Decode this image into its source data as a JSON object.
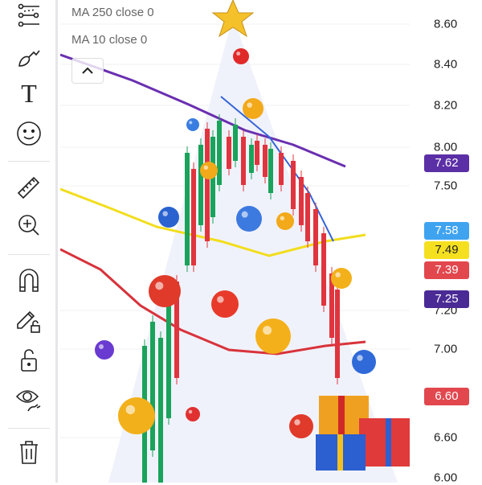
{
  "toolbar": {
    "items": [
      {
        "name": "indicator-settings-icon"
      },
      {
        "name": "brush-icon"
      },
      {
        "name": "text-icon"
      },
      {
        "name": "emoji-icon"
      },
      {
        "name": "ruler-icon"
      },
      {
        "name": "zoom-in-icon"
      },
      {
        "name": "magnet-icon"
      },
      {
        "name": "lock-drawing-icon"
      },
      {
        "name": "unlock-icon"
      },
      {
        "name": "eye-icon"
      },
      {
        "name": "trash-icon"
      }
    ],
    "text_tool_label": "T"
  },
  "legend": {
    "ma250": "MA 250 close 0",
    "ma10": "MA 10 close 0"
  },
  "axis": {
    "ticks": [
      "8.60",
      "8.40",
      "8.20",
      "8.00",
      "7.50",
      "7.20",
      "7.00",
      "6.60",
      "6.00"
    ]
  },
  "badges": [
    {
      "value": "7.62",
      "color": "#5b2fa6"
    },
    {
      "value": "7.58",
      "color": "#3fa3f0"
    },
    {
      "value": "7.49",
      "color": "#f5e020",
      "text": "#222"
    },
    {
      "value": "7.39",
      "color": "#e2474e"
    },
    {
      "value": "7.25",
      "color": "#4a2a95"
    },
    {
      "value": "6.60",
      "color": "#e2474e"
    }
  ],
  "colors": {
    "ma_purple": "#6a2fb0",
    "ma_yellow": "#f2dd1d",
    "ma_red": "#d8333b",
    "ma_blue": "#3565d8",
    "up": "#1aa35a",
    "down": "#e0353e"
  }
}
